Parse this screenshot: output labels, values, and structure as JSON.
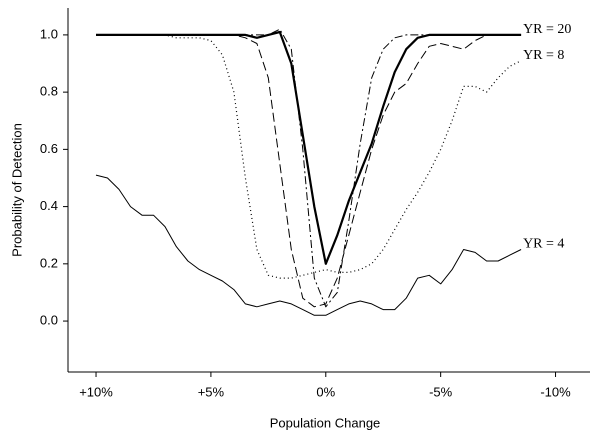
{
  "chart_data": {
    "type": "line",
    "x_label": "Population Change",
    "y_label": "Probability of Detection",
    "x": [
      10,
      9.5,
      9,
      8.5,
      8,
      7.5,
      7,
      6.5,
      6,
      5.5,
      5,
      4.5,
      4,
      3.5,
      3,
      2.5,
      2,
      1.5,
      1,
      0.5,
      0,
      -0.5,
      -1,
      -1.5,
      -2,
      -2.5,
      -3,
      -3.5,
      -4,
      -4.5,
      -5,
      -5.5,
      -6,
      -6.5,
      -7,
      -7.5,
      -8,
      -8.5
    ],
    "series": [
      {
        "name": "YR = 20",
        "color": "#000000",
        "style": "thick",
        "values": [
          1,
          1,
          1,
          1,
          1,
          1,
          1,
          1,
          1,
          1,
          1,
          1,
          1,
          1,
          0.99,
          1,
          1.01,
          0.9,
          0.65,
          0.4,
          0.2,
          0.3,
          0.42,
          0.52,
          0.62,
          0.75,
          0.87,
          0.95,
          0.99,
          1,
          1,
          1,
          1,
          1,
          1,
          1,
          1,
          1
        ]
      },
      {
        "color": "#000000",
        "style": "dashdot",
        "values": [
          1,
          1,
          1,
          1,
          1,
          1,
          1,
          1,
          1,
          1,
          1,
          1,
          1,
          1,
          1,
          1,
          1.02,
          0.95,
          0.6,
          0.15,
          0.05,
          0.1,
          0.35,
          0.62,
          0.85,
          0.95,
          0.99,
          1,
          1,
          1,
          1,
          1,
          1,
          1,
          1,
          1,
          1,
          1
        ]
      },
      {
        "color": "#000000",
        "style": "dashed",
        "values": [
          1,
          1,
          1,
          1,
          1,
          1,
          1,
          1,
          1,
          1,
          1,
          1,
          1,
          0.99,
          0.97,
          0.85,
          0.55,
          0.25,
          0.08,
          0.05,
          0.06,
          0.15,
          0.3,
          0.45,
          0.6,
          0.72,
          0.8,
          0.83,
          0.9,
          0.96,
          0.97,
          0.96,
          0.95,
          0.98,
          1,
          1,
          1,
          1
        ]
      },
      {
        "name": "YR = 8",
        "color": "#000000",
        "style": "dotted",
        "values": [
          1,
          1,
          1,
          1,
          1,
          1,
          1,
          0.99,
          0.99,
          0.99,
          0.98,
          0.93,
          0.8,
          0.5,
          0.25,
          0.16,
          0.15,
          0.15,
          0.16,
          0.17,
          0.18,
          0.17,
          0.17,
          0.18,
          0.2,
          0.25,
          0.32,
          0.39,
          0.45,
          0.52,
          0.6,
          0.7,
          0.82,
          0.82,
          0.8,
          0.85,
          0.89,
          0.91
        ]
      },
      {
        "name": "YR = 4",
        "color": "#000000",
        "style": "thin",
        "values": [
          0.51,
          0.5,
          0.46,
          0.4,
          0.37,
          0.37,
          0.33,
          0.26,
          0.21,
          0.18,
          0.16,
          0.14,
          0.11,
          0.06,
          0.05,
          0.06,
          0.07,
          0.06,
          0.04,
          0.02,
          0.02,
          0.04,
          0.06,
          0.07,
          0.06,
          0.04,
          0.04,
          0.08,
          0.15,
          0.16,
          0.13,
          0.18,
          0.25,
          0.24,
          0.21,
          0.21,
          0.23,
          0.25
        ]
      }
    ],
    "xlim": [
      11.22,
      -11.5
    ],
    "xticks": [
      {
        "value": 10,
        "label": "+10%"
      },
      {
        "value": 5,
        "label": "+5%"
      },
      {
        "value": 0,
        "label": "0%"
      },
      {
        "value": -5,
        "label": "-5%"
      },
      {
        "value": -10,
        "label": "-10%"
      }
    ],
    "ylim": [
      -0.178,
      1.094
    ],
    "yticks": [
      {
        "value": 0,
        "label": "0.0"
      },
      0.2,
      0.4,
      0.6,
      0.8,
      {
        "value": 1,
        "label": "1.0"
      }
    ],
    "grid": false
  }
}
